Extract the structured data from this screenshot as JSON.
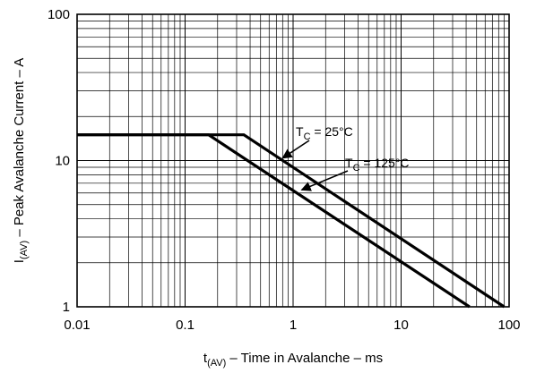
{
  "chart_data": {
    "type": "line",
    "xscale": "log",
    "yscale": "log",
    "xlim": [
      0.01,
      100
    ],
    "ylim": [
      1,
      100
    ],
    "grid": true,
    "x_ticks": [
      0.01,
      0.1,
      1,
      10,
      100
    ],
    "x_tick_labels": [
      "0.01",
      "0.1",
      "1",
      "10",
      "100"
    ],
    "y_ticks": [
      1,
      10,
      100
    ],
    "y_tick_labels": [
      "1",
      "10",
      "100"
    ],
    "xlabel": {
      "main": "t",
      "sub": "(AV)",
      "rest": " – Time in Avalanche – ms"
    },
    "ylabel": {
      "main": "I",
      "sub": "(AV)",
      "rest": " – Peak Avalanche Current – A"
    },
    "series": [
      {
        "name": "T C = 25°C",
        "label": {
          "main": "T",
          "sub": "C",
          "rest": " = 25°C"
        },
        "x": [
          0.01,
          0.35,
          90
        ],
        "y": [
          15,
          15,
          1
        ]
      },
      {
        "name": "T C = 125°C",
        "label": {
          "main": "T",
          "sub": "C",
          "rest": " = 125°C"
        },
        "x": [
          0.01,
          0.165,
          43
        ],
        "y": [
          15,
          15,
          1
        ]
      }
    ]
  }
}
